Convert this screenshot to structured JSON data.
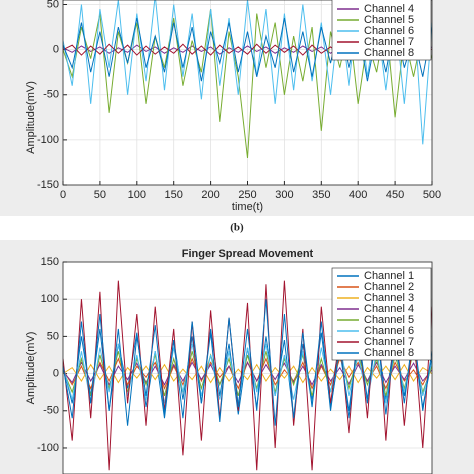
{
  "chart_data": [
    {
      "type": "line",
      "xlabel": "time(t)",
      "ylabel": "Amplitude(mV)",
      "caption": "(b)",
      "xlim": [
        0,
        500
      ],
      "xticks": [
        0,
        50,
        100,
        150,
        200,
        250,
        300,
        350,
        400,
        450,
        500
      ],
      "ylim": [
        -150,
        55
      ],
      "yticks": [
        50,
        0,
        -50,
        -100,
        -150
      ],
      "grid": true,
      "legend": "upper right",
      "x": [
        0,
        12.5,
        25,
        37.5,
        50,
        62.5,
        75,
        87.5,
        100,
        112.5,
        125,
        137.5,
        150,
        162.5,
        175,
        187.5,
        200,
        212.5,
        225,
        237.5,
        250,
        262.5,
        275,
        287.5,
        300,
        312.5,
        325,
        337.5,
        350,
        362.5,
        375,
        387.5,
        400,
        412.5,
        425,
        437.5,
        450,
        462.5,
        475,
        487.5,
        500
      ],
      "series": [
        {
          "name": "Channel 4",
          "color": "#7e2f8e",
          "values": [
            2,
            -3,
            4,
            -2,
            3,
            -4,
            2,
            -3,
            5,
            -2,
            3,
            -4,
            2,
            -3,
            4,
            -2,
            3,
            -5,
            2,
            -3,
            4,
            -2,
            3,
            -4,
            2,
            -3,
            4,
            -2,
            3,
            -4,
            2,
            -3,
            5,
            -2,
            3,
            -4,
            2,
            -3,
            4,
            -2,
            3
          ]
        },
        {
          "name": "Channel 5",
          "color": "#77ac30",
          "values": [
            0,
            -30,
            25,
            -10,
            40,
            -70,
            20,
            -15,
            30,
            -60,
            15,
            -20,
            35,
            -40,
            10,
            -25,
            45,
            -80,
            20,
            -30,
            -120,
            40,
            -20,
            30,
            -50,
            15,
            -35,
            25,
            -90,
            20,
            -20,
            30,
            -60,
            10,
            -25,
            35,
            -75,
            15,
            -30,
            20,
            -10
          ]
        },
        {
          "name": "Channel 6",
          "color": "#4dbeee",
          "values": [
            10,
            -40,
            50,
            -60,
            45,
            -20,
            55,
            -50,
            40,
            -35,
            60,
            -45,
            50,
            -30,
            40,
            -55,
            45,
            -40,
            35,
            -50,
            55,
            -30,
            45,
            -60,
            40,
            -45,
            50,
            -35,
            30,
            -50,
            45,
            -40,
            55,
            -30,
            35,
            -45,
            40,
            -60,
            50,
            -105,
            30
          ]
        },
        {
          "name": "Channel 7",
          "color": "#a2142f",
          "values": [
            0,
            5,
            -6,
            4,
            -5,
            6,
            -4,
            5,
            -6,
            4,
            -5,
            3,
            -4,
            6,
            -5,
            4,
            -6,
            5,
            -4,
            3,
            -5,
            6,
            -4,
            5,
            -3,
            4,
            -6,
            5,
            -4,
            3,
            -5,
            4,
            -6,
            5,
            -4,
            3,
            -5,
            6,
            -4,
            5,
            0
          ]
        },
        {
          "name": "Channel 8",
          "color": "#0072bd",
          "values": [
            5,
            -20,
            30,
            -25,
            20,
            -30,
            25,
            -15,
            35,
            -20,
            15,
            -25,
            30,
            -20,
            25,
            -35,
            20,
            -15,
            30,
            -25,
            20,
            -30,
            15,
            -20,
            35,
            -25,
            20,
            -30,
            25,
            -15,
            30,
            -20,
            25,
            -35,
            20,
            -25,
            30,
            -20,
            15,
            -30,
            25
          ]
        }
      ]
    },
    {
      "type": "line",
      "title": "Finger Spread Movement",
      "ylabel": "Amplitude(mV)",
      "xlim": [
        0,
        500
      ],
      "ylim": [
        -135,
        150
      ],
      "yticks": [
        150,
        100,
        50,
        0,
        -50,
        -100
      ],
      "grid": true,
      "legend": "upper right",
      "x": [
        0,
        12.5,
        25,
        37.5,
        50,
        62.5,
        75,
        87.5,
        100,
        112.5,
        125,
        137.5,
        150,
        162.5,
        175,
        187.5,
        200,
        212.5,
        225,
        237.5,
        250,
        262.5,
        275,
        287.5,
        300,
        312.5,
        325,
        337.5,
        350,
        362.5,
        375,
        387.5,
        400,
        412.5,
        425,
        437.5,
        450,
        462.5,
        475,
        487.5,
        500
      ],
      "series": [
        {
          "name": "Channel 1",
          "color": "#0072bd",
          "values": [
            10,
            -40,
            50,
            -30,
            60,
            -50,
            40,
            -20,
            55,
            -45,
            30,
            -60,
            45,
            -35,
            50,
            -40,
            60,
            -30,
            40,
            -55,
            35,
            -45,
            50,
            -30,
            45,
            -60,
            40,
            -35,
            55,
            -45,
            30,
            -50,
            45,
            -40,
            60,
            -35,
            50,
            -30,
            40,
            -45,
            20
          ]
        },
        {
          "name": "Channel 2",
          "color": "#d95319",
          "values": [
            5,
            -15,
            10,
            -20,
            15,
            -10,
            20,
            -15,
            10,
            -5,
            15,
            -20,
            10,
            -15,
            20,
            -10,
            15,
            -5,
            10,
            -20,
            15,
            -10,
            20,
            -15,
            5,
            -10,
            15,
            -20,
            10,
            -15,
            20,
            -5,
            15,
            -10,
            10,
            -20,
            15,
            -10,
            5,
            -15,
            10
          ]
        },
        {
          "name": "Channel 3",
          "color": "#edb120",
          "values": [
            0,
            8,
            -10,
            12,
            -8,
            10,
            -12,
            8,
            -6,
            10,
            -8,
            12,
            -10,
            6,
            -8,
            10,
            -12,
            8,
            -10,
            6,
            -8,
            12,
            -10,
            8,
            -6,
            10,
            -12,
            8,
            -10,
            6,
            -8,
            10,
            -12,
            8,
            -6,
            10,
            -8,
            12,
            -10,
            8,
            0
          ]
        },
        {
          "name": "Channel 4",
          "color": "#7e2f8e",
          "values": [
            3,
            -12,
            15,
            -10,
            12,
            -15,
            10,
            -8,
            14,
            -12,
            10,
            -15,
            12,
            -10,
            15,
            -8,
            12,
            -14,
            10,
            -12,
            15,
            -10,
            12,
            -8,
            14,
            -12,
            10,
            -15,
            12,
            -10,
            8,
            -14,
            12,
            -10,
            15,
            -12,
            10,
            -8,
            14,
            -10,
            5
          ]
        },
        {
          "name": "Channel 5",
          "color": "#77ac30",
          "values": [
            5,
            -25,
            20,
            -30,
            25,
            -20,
            30,
            -25,
            20,
            -15,
            25,
            -30,
            20,
            -25,
            30,
            -20,
            25,
            -15,
            20,
            -30,
            25,
            -20,
            30,
            -25,
            20,
            -15,
            25,
            -30,
            20,
            -25,
            30,
            -20,
            25,
            -15,
            20,
            -30,
            25,
            -20,
            30,
            -25,
            10
          ]
        },
        {
          "name": "Channel 6",
          "color": "#4dbeee",
          "values": [
            10,
            -35,
            30,
            -40,
            35,
            -25,
            40,
            -30,
            25,
            -35,
            30,
            -40,
            35,
            -25,
            40,
            -30,
            25,
            -35,
            30,
            -40,
            35,
            -25,
            40,
            -30,
            25,
            -35,
            30,
            -40,
            35,
            -25,
            40,
            -30,
            25,
            -35,
            30,
            -40,
            35,
            -25,
            40,
            -30,
            15
          ]
        },
        {
          "name": "Channel 7",
          "color": "#a2142f",
          "values": [
            20,
            -90,
            100,
            -60,
            110,
            -130,
            125,
            -40,
            80,
            -70,
            90,
            -50,
            60,
            -110,
            70,
            -90,
            85,
            -60,
            75,
            -50,
            95,
            -130,
            120,
            -100,
            125,
            -70,
            60,
            -130,
            90,
            -40,
            50,
            -80,
            70,
            -60,
            100,
            -90,
            80,
            -70,
            60,
            -100,
            90
          ]
        },
        {
          "name": "Channel 8",
          "color": "#0072bd",
          "values": [
            10,
            -60,
            70,
            -40,
            80,
            -50,
            60,
            -70,
            50,
            -30,
            65,
            -55,
            45,
            -60,
            70,
            -40,
            55,
            -65,
            75,
            -45,
            60,
            -50,
            100,
            -70,
            80,
            -60,
            55,
            -45,
            70,
            -50,
            40,
            -60,
            55,
            -35,
            65,
            -55,
            50,
            -40,
            60,
            -50,
            30
          ]
        }
      ]
    }
  ]
}
